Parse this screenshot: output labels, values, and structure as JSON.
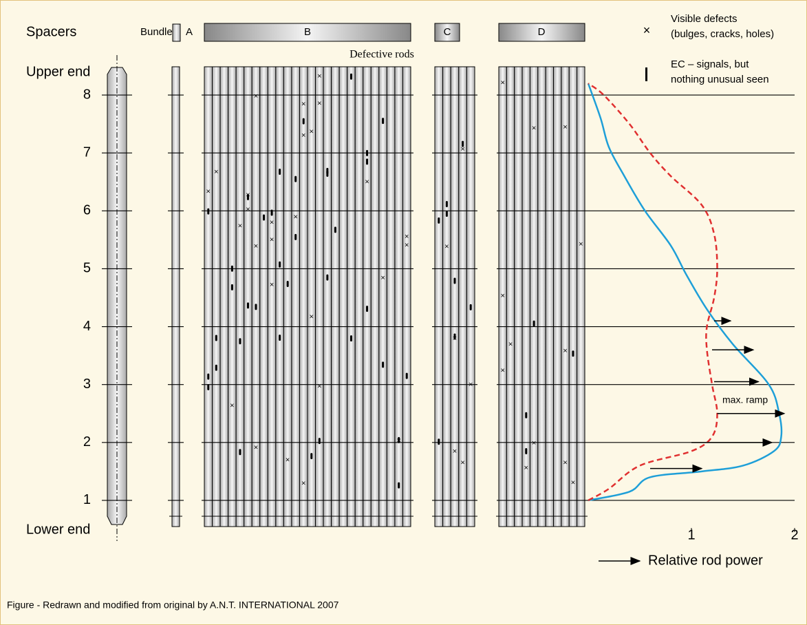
{
  "header": {
    "spacers": "Spacers",
    "bundle": "Bundle",
    "bundles": [
      "A",
      "B",
      "C",
      "D"
    ],
    "defective_rods": "Defective rods",
    "upper_end": "Upper end",
    "lower_end": "Lower end"
  },
  "legend": {
    "visible_symbol": "×",
    "visible_1": "Visible defects",
    "visible_2": "(bulges, cracks, holes)",
    "ec_1": "EC – signals, but",
    "ec_2": "nothing unusual seen"
  },
  "footer": "Figure - Redrawn and modified from original by A.N.T. INTERNATIONAL 2007",
  "chart_data": {
    "type": "line",
    "x_label": "Relative rod power",
    "annotation": "max. ramp",
    "xlim": [
      0,
      2
    ],
    "xticks": [
      1,
      2
    ],
    "ylim": [
      0.5,
      8.5
    ],
    "yticks": [
      1,
      2,
      3,
      4,
      5,
      6,
      7,
      8
    ],
    "series": [
      {
        "color": "#1e9fd8",
        "style": "solid",
        "x": [
          0,
          0.4,
          0.6,
          1.1,
          1.5,
          1.8,
          1.87,
          1.85,
          1.75,
          1.4,
          1.15,
          0.95,
          0.8,
          0.55,
          0.35,
          0.2,
          0.12,
          0
        ],
        "values": [
          1,
          1.15,
          1.4,
          1.5,
          1.6,
          1.85,
          2.1,
          2.5,
          3.0,
          3.7,
          4.3,
          4.9,
          5.4,
          6.0,
          6.6,
          7.1,
          7.6,
          8.2
        ]
      },
      {
        "color": "#e03030",
        "style": "dashed",
        "x": [
          0,
          0.2,
          0.5,
          1.0,
          1.2,
          1.25,
          1.2,
          1.15,
          1.15,
          1.22,
          1.25,
          1.22,
          1.1,
          0.8,
          0.6,
          0.4,
          0.15,
          0
        ],
        "values": [
          1,
          1.2,
          1.6,
          1.85,
          2.1,
          2.5,
          3.0,
          3.6,
          4.0,
          4.5,
          5.0,
          5.6,
          6.1,
          6.6,
          7.0,
          7.5,
          8.0,
          8.2
        ]
      }
    ],
    "arrows": [
      {
        "y": 4.1,
        "from": 1.22,
        "to": 1.38
      },
      {
        "y": 3.6,
        "from": 1.2,
        "to": 1.6
      },
      {
        "y": 3.05,
        "from": 1.22,
        "to": 1.65
      },
      {
        "y": 2.5,
        "from": 1.25,
        "to": 1.9
      },
      {
        "y": 2.0,
        "from": 1.0,
        "to": 1.78
      },
      {
        "y": 1.55,
        "from": 0.6,
        "to": 1.1
      }
    ]
  }
}
